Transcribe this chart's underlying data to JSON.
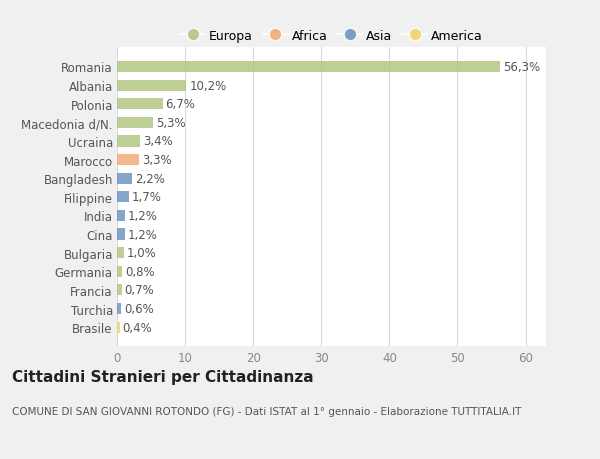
{
  "countries": [
    "Romania",
    "Albania",
    "Polonia",
    "Macedonia d/N.",
    "Ucraina",
    "Marocco",
    "Bangladesh",
    "Filippine",
    "India",
    "Cina",
    "Bulgaria",
    "Germania",
    "Francia",
    "Turchia",
    "Brasile"
  ],
  "values": [
    56.3,
    10.2,
    6.7,
    5.3,
    3.4,
    3.3,
    2.2,
    1.7,
    1.2,
    1.2,
    1.0,
    0.8,
    0.7,
    0.6,
    0.4
  ],
  "labels": [
    "56,3%",
    "10,2%",
    "6,7%",
    "5,3%",
    "3,4%",
    "3,3%",
    "2,2%",
    "1,7%",
    "1,2%",
    "1,2%",
    "1,0%",
    "0,8%",
    "0,7%",
    "0,6%",
    "0,4%"
  ],
  "continent": [
    "Europa",
    "Europa",
    "Europa",
    "Europa",
    "Europa",
    "Africa",
    "Asia",
    "Asia",
    "Asia",
    "Asia",
    "Europa",
    "Europa",
    "Europa",
    "Asia",
    "America"
  ],
  "colors": {
    "Europa": "#adc47a",
    "Africa": "#f0a86e",
    "Asia": "#6690c0",
    "America": "#f0d060"
  },
  "xlim": [
    0,
    63
  ],
  "xticks": [
    0,
    10,
    20,
    30,
    40,
    50,
    60
  ],
  "background_color": "#f0f0f0",
  "plot_bg_color": "#ffffff",
  "grid_color": "#d8d8d8",
  "title": "Cittadini Stranieri per Cittadinanza",
  "subtitle": "COMUNE DI SAN GIOVANNI ROTONDO (FG) - Dati ISTAT al 1° gennaio - Elaborazione TUTTITALIA.IT",
  "bar_height": 0.6,
  "label_fontsize": 8.5,
  "tick_fontsize": 8.5,
  "title_fontsize": 11,
  "subtitle_fontsize": 7.5,
  "legend_order": [
    "Europa",
    "Africa",
    "Asia",
    "America"
  ]
}
